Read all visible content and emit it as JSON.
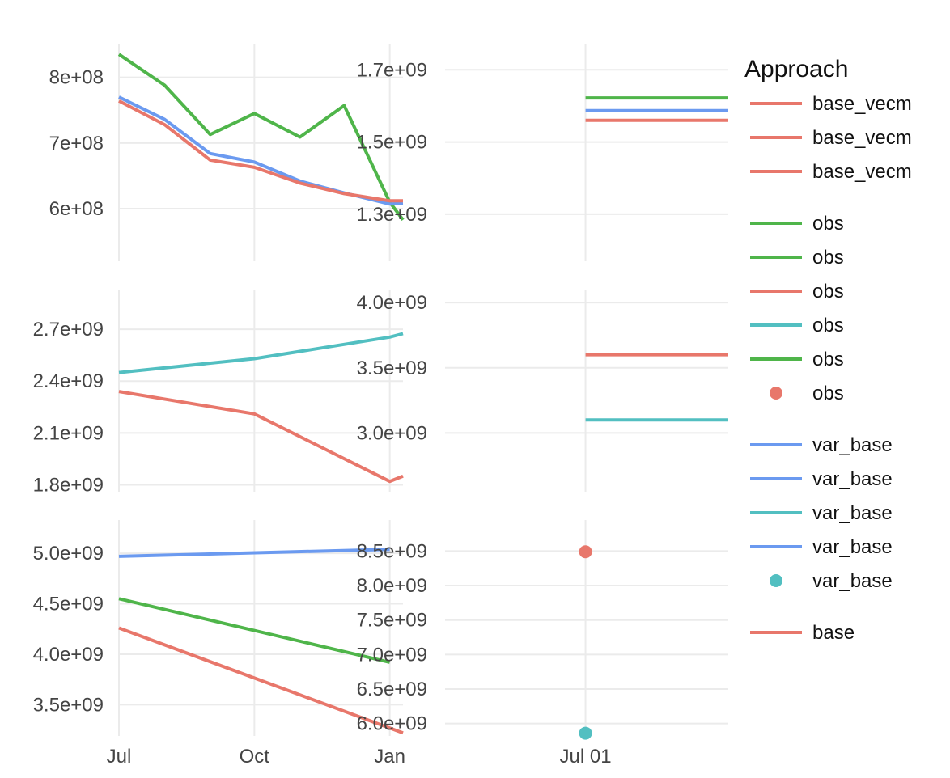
{
  "chart_data": {
    "type": "line",
    "colors": {
      "red": "#e8776b",
      "green": "#4fb54a",
      "blue": "#6b9af0",
      "teal": "#52bfc1",
      "grid": "#ebebeb",
      "tick_text": "#444444"
    },
    "x_axes": [
      {
        "ticks": [
          "2020-07-01",
          "2020-10-01",
          "2021-01-01"
        ],
        "labels": [
          "Jul",
          "Oct",
          "Jan"
        ],
        "range": [
          "2020-07-01",
          "2021-01-10"
        ]
      },
      {
        "ticks": [
          "2021-07-01"
        ],
        "labels": [
          "Jul 01"
        ],
        "range": [
          "2021-05-01",
          "2021-09-01"
        ]
      }
    ],
    "panels": [
      {
        "left": {
          "ylim": [
            520000000,
            850000000
          ],
          "yticks": [
            600000000,
            700000000,
            800000000
          ],
          "yticklabels": [
            "6e+08",
            "7e+08",
            "8e+08"
          ],
          "series": [
            {
              "color": "green",
              "x": [
                "2020-07-01",
                "2020-08-01",
                "2020-09-01",
                "2020-10-01",
                "2020-11-01",
                "2020-12-01",
                "2021-01-01",
                "2021-01-10"
              ],
              "y": [
                835000000,
                788000000,
                713000000,
                745000000,
                709000000,
                757000000,
                610000000,
                583000000
              ]
            },
            {
              "color": "blue",
              "x": [
                "2020-07-01",
                "2020-08-01",
                "2020-09-01",
                "2020-10-01",
                "2020-11-01",
                "2020-12-01",
                "2021-01-01",
                "2021-01-10"
              ],
              "y": [
                770000000,
                736000000,
                684000000,
                671000000,
                642000000,
                624000000,
                607000000,
                608000000
              ]
            },
            {
              "color": "red",
              "x": [
                "2020-07-01",
                "2020-08-01",
                "2020-09-01",
                "2020-10-01",
                "2020-11-01",
                "2020-12-01",
                "2021-01-01",
                "2021-01-10"
              ],
              "y": [
                764000000,
                728000000,
                674000000,
                663000000,
                639000000,
                623000000,
                612000000,
                612000000
              ]
            }
          ]
        },
        "right": {
          "ylim": [
            1170000000,
            1770000000
          ],
          "yticks": [
            1300000000,
            1500000000,
            1700000000
          ],
          "yticklabels": [
            "1.3e+09",
            "1.5e+09",
            "1.7e+09"
          ],
          "series": [
            {
              "color": "green",
              "x": [
                "2021-07-01",
                "2021-09-01"
              ],
              "y": [
                1622000000,
                1622000000
              ]
            },
            {
              "color": "blue",
              "x": [
                "2021-07-01",
                "2021-09-01"
              ],
              "y": [
                1587000000,
                1587000000
              ]
            },
            {
              "color": "red",
              "x": [
                "2021-07-01",
                "2021-09-01"
              ],
              "y": [
                1560000000,
                1560000000
              ]
            }
          ]
        }
      },
      {
        "left": {
          "ylim": [
            1760000000,
            2930000000
          ],
          "yticks": [
            1800000000,
            2100000000,
            2400000000,
            2700000000
          ],
          "yticklabels": [
            "1.8e+09",
            "2.1e+09",
            "2.4e+09",
            "2.7e+09"
          ],
          "series": [
            {
              "color": "teal",
              "x": [
                "2020-07-01",
                "2020-10-01",
                "2021-01-01",
                "2021-01-10"
              ],
              "y": [
                2450000000,
                2530000000,
                2655000000,
                2675000000
              ]
            },
            {
              "color": "red",
              "x": [
                "2020-07-01",
                "2020-10-01",
                "2021-01-01",
                "2021-01-10"
              ],
              "y": [
                2340000000,
                2210000000,
                1820000000,
                1850000000
              ]
            }
          ]
        },
        "right": {
          "ylim": [
            2550000000,
            4100000000
          ],
          "yticks": [
            3000000000,
            3500000000,
            4000000000
          ],
          "yticklabels": [
            "3.0e+09",
            "3.5e+09",
            "4.0e+09"
          ],
          "series": [
            {
              "color": "red",
              "x": [
                "2021-07-01",
                "2021-09-01"
              ],
              "y": [
                3600000000,
                3600000000
              ]
            },
            {
              "color": "teal",
              "x": [
                "2021-07-01",
                "2021-09-01"
              ],
              "y": [
                3100000000,
                3100000000
              ]
            }
          ]
        }
      },
      {
        "left": {
          "ylim": [
            3190000000,
            5330000000
          ],
          "yticks": [
            3500000000,
            4000000000,
            4500000000,
            5000000000
          ],
          "yticklabels": [
            "3.5e+09",
            "4.0e+09",
            "4.5e+09",
            "5.0e+09"
          ],
          "series": [
            {
              "color": "blue",
              "x": [
                "2020-07-01",
                "2021-01-01"
              ],
              "y": [
                4970000000,
                5040000000
              ]
            },
            {
              "color": "green",
              "x": [
                "2020-07-01",
                "2021-01-01"
              ],
              "y": [
                4550000000,
                3920000000
              ]
            },
            {
              "color": "red",
              "x": [
                "2020-07-01",
                "2021-01-10"
              ],
              "y": [
                4260000000,
                3220000000
              ]
            }
          ]
        },
        "right": {
          "ylim": [
            5820000000,
            8950000000
          ],
          "yticks": [
            6000000000,
            6500000000,
            7000000000,
            7500000000,
            8000000000,
            8500000000
          ],
          "yticklabels": [
            "6.0e+09",
            "6.5e+09",
            "7.0e+09",
            "7.5e+09",
            "8.0e+09",
            "8.5e+09"
          ],
          "points": [
            {
              "color": "red",
              "x": "2021-07-01",
              "y": 8490000000
            },
            {
              "color": "teal",
              "x": "2021-07-01",
              "y": 5860000000
            }
          ]
        }
      }
    ],
    "legend": {
      "title": "Approach",
      "placement": "right",
      "groups": [
        {
          "entries": [
            {
              "label": "base_vecm",
              "color": "red",
              "symbol": "line"
            },
            {
              "label": "base_vecm",
              "color": "red",
              "symbol": "line"
            },
            {
              "label": "base_vecm",
              "color": "red",
              "symbol": "line"
            }
          ]
        },
        {
          "entries": [
            {
              "label": "obs",
              "color": "green",
              "symbol": "line"
            },
            {
              "label": "obs",
              "color": "green",
              "symbol": "line"
            },
            {
              "label": "obs",
              "color": "red",
              "symbol": "line"
            },
            {
              "label": "obs",
              "color": "teal",
              "symbol": "line"
            },
            {
              "label": "obs",
              "color": "green",
              "symbol": "line"
            },
            {
              "label": "obs",
              "color": "red",
              "symbol": "marker"
            }
          ]
        },
        {
          "entries": [
            {
              "label": "var_base",
              "color": "blue",
              "symbol": "line"
            },
            {
              "label": "var_base",
              "color": "blue",
              "symbol": "line"
            },
            {
              "label": "var_base",
              "color": "teal",
              "symbol": "line"
            },
            {
              "label": "var_base",
              "color": "blue",
              "symbol": "line"
            },
            {
              "label": "var_base",
              "color": "teal",
              "symbol": "marker"
            }
          ]
        },
        {
          "entries": [
            {
              "label": "base",
              "color": "red",
              "symbol": "line"
            }
          ]
        }
      ]
    },
    "grid": true
  }
}
